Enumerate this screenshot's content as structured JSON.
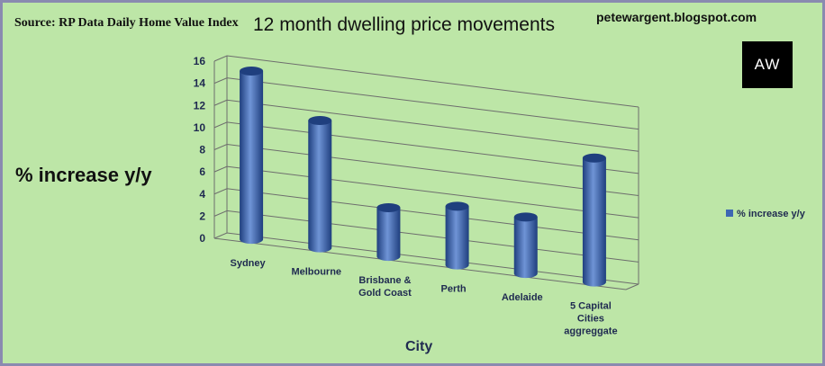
{
  "header": {
    "source": "Source: RP Data Daily Home Value Index",
    "title": "12 month dwelling price movements",
    "blog": "petewargent.blogspot.com",
    "logo_text": "AW"
  },
  "colors": {
    "background": "#bde6a7",
    "bar": "#3d67b3",
    "bar_dark": "#1f3f7e",
    "bar_light": "#6f94d6",
    "gridline": "#6d6d6d",
    "label": "#1f2a50"
  },
  "chart_data": {
    "type": "bar",
    "style": "3d-cylinder",
    "categories": [
      "Sydney",
      "Melbourne",
      "Brisbane & Gold Coast",
      "Perth",
      "Adelaide",
      "5 Capital Cities aggreggate"
    ],
    "category_lines": [
      [
        "Sydney"
      ],
      [
        "Melbourne"
      ],
      [
        "Brisbane &",
        "Gold Coast"
      ],
      [
        "Perth"
      ],
      [
        "Adelaide"
      ],
      [
        "5 Capital",
        "Cities",
        "aggreggate"
      ]
    ],
    "series": [
      {
        "name": "% increase y/y",
        "values": [
          15.2,
          11.5,
          4.4,
          5.3,
          5.1,
          11.2
        ]
      }
    ],
    "ylabel": "% increase y/y",
    "xlabel": "City",
    "ylim": [
      0,
      16
    ],
    "yticks": [
      0,
      2,
      4,
      6,
      8,
      10,
      12,
      14,
      16
    ],
    "grid": true,
    "legend": "right"
  }
}
